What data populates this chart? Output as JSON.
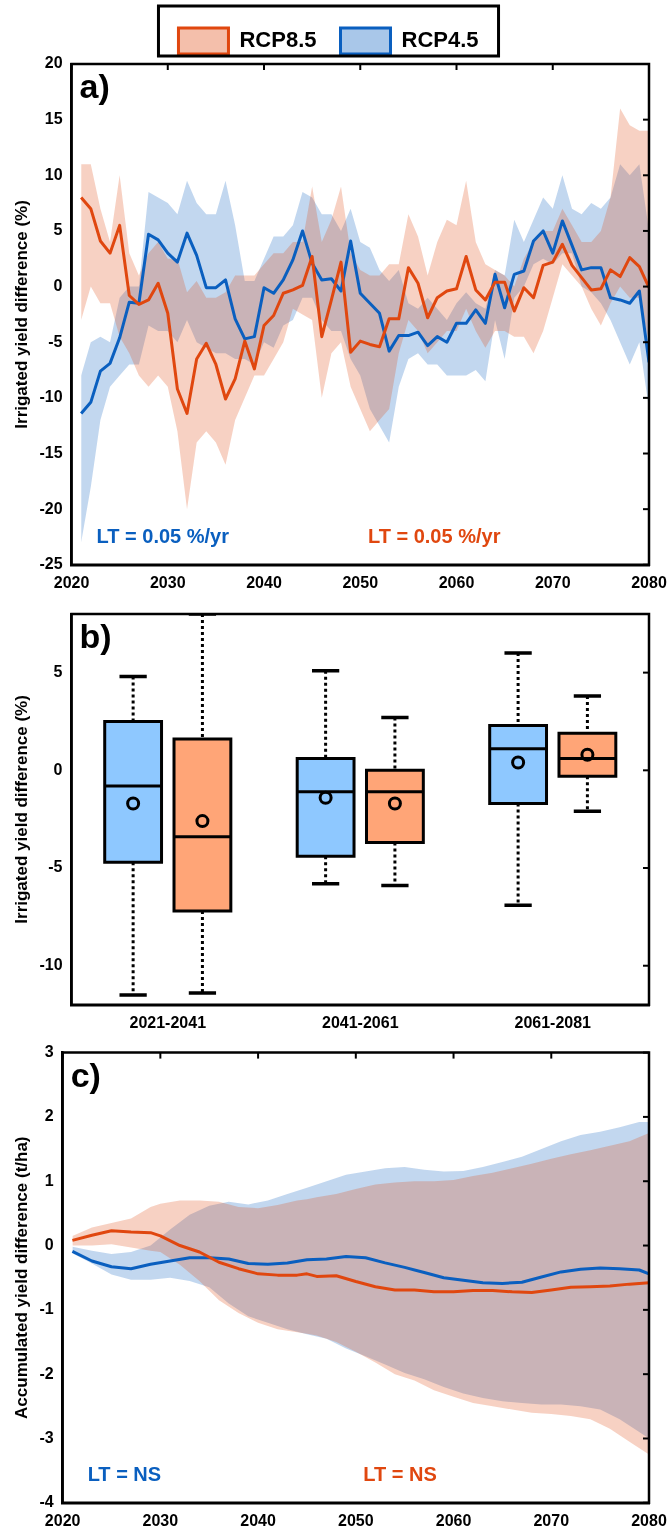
{
  "chart_data": [
    {
      "type": "line",
      "title": "a)",
      "ylabel": "Irrigated yield difference (%)",
      "legend": "top",
      "line_style": "solid",
      "marker": "none",
      "x": [
        2021,
        2022,
        2023,
        2024,
        2025,
        2026,
        2027,
        2028,
        2029,
        2030,
        2031,
        2032,
        2033,
        2034,
        2035,
        2036,
        2037,
        2038,
        2039,
        2040,
        2041,
        2042,
        2043,
        2044,
        2045,
        2046,
        2047,
        2048,
        2049,
        2050,
        2051,
        2052,
        2053,
        2054,
        2055,
        2056,
        2057,
        2058,
        2059,
        2060,
        2061,
        2062,
        2063,
        2064,
        2065,
        2066,
        2067,
        2068,
        2069,
        2070,
        2071,
        2072,
        2073,
        2074,
        2075,
        2076,
        2077,
        2078,
        2079,
        2080
      ],
      "xlim": [
        2020,
        2080
      ],
      "xticks": [
        2020,
        2030,
        2040,
        2050,
        2060,
        2070,
        2080
      ],
      "ylim": [
        -25,
        20
      ],
      "yticks": [
        -25,
        -20,
        -15,
        -10,
        -5,
        0,
        5,
        10,
        15,
        20
      ],
      "series": [
        {
          "name": "RCP8.5",
          "color": "#e0470f",
          "values": [
            8.0,
            7.0,
            4.1,
            3.0,
            5.5,
            -0.8,
            -1.6,
            -1.2,
            0.3,
            -2.4,
            -9.2,
            -11.4,
            -6.5,
            -5.1,
            -7.0,
            -10.1,
            -8.3,
            -4.9,
            -7.4,
            -3.5,
            -2.6,
            -0.6,
            -0.3,
            0.1,
            2.7,
            -4.5,
            -1.2,
            2.2,
            -5.9,
            -4.9,
            -5.2,
            -5.4,
            -2.9,
            -2.9,
            1.7,
            0.3,
            -2.8,
            -1.0,
            -0.4,
            -0.2,
            2.7,
            -0.3,
            -1.2,
            0.4,
            0.4,
            -2.2,
            -0.1,
            -1.0,
            1.9,
            2.2,
            3.8,
            1.9,
            0.8,
            -0.3,
            -0.2,
            1.5,
            0.9,
            2.6,
            1.8,
            -0.1
          ],
          "upper": [
            11,
            11,
            7,
            4,
            10,
            3,
            1,
            3,
            4,
            2.5,
            2.5,
            -0.5,
            0.5,
            -1,
            -1,
            -0.5,
            1,
            1,
            1,
            2,
            3,
            3,
            4,
            4,
            9,
            4,
            6,
            9,
            3,
            1.5,
            1,
            1,
            2,
            2,
            6.5,
            4.5,
            1,
            4,
            6,
            5.5,
            9.5,
            4,
            2,
            1.5,
            1,
            0,
            2.5,
            4,
            5,
            5,
            7,
            5.5,
            4,
            4,
            5,
            8,
            16,
            14.5,
            14,
            14
          ],
          "lower": [
            -3,
            0,
            -1.5,
            -1.5,
            -4.5,
            -6,
            -8,
            -9,
            -8,
            -9,
            -13,
            -20,
            -14,
            -13,
            -14,
            -16,
            -12,
            -10,
            -8,
            -8,
            -6.5,
            -5,
            -2,
            -2.5,
            -3,
            -10,
            -6,
            -5,
            -9,
            -11,
            -13,
            -12,
            -11,
            -6,
            -3,
            -4,
            -6,
            -5,
            -4,
            -4,
            -2,
            -4,
            -5.5,
            -4,
            -4,
            -4.5,
            -4.5,
            -6,
            -4,
            -1,
            2,
            1,
            0,
            -2,
            -3.5,
            -1.5,
            0,
            -1,
            -1,
            -5
          ]
        },
        {
          "name": "RCP4.5",
          "color": "#0a5fbf",
          "values": [
            -11.4,
            -10.4,
            -7.6,
            -6.9,
            -4.6,
            -1.4,
            -1.5,
            4.7,
            4.2,
            3.0,
            2.2,
            4.8,
            2.8,
            -0.1,
            -0.1,
            0.6,
            -2.9,
            -4.7,
            -4.5,
            -0.1,
            -0.6,
            0.6,
            2.4,
            5.0,
            2.1,
            0.6,
            0.7,
            -0.4,
            4.1,
            -0.6,
            -1.5,
            -2.4,
            -5.8,
            -4.4,
            -4.4,
            -4.1,
            -5.3,
            -4.5,
            -5.0,
            -3.3,
            -3.3,
            -2.1,
            -3.3,
            1.1,
            -1.9,
            1.1,
            1.4,
            4.1,
            5.0,
            3.0,
            5.9,
            3.7,
            1.5,
            1.7,
            1.7,
            -1.0,
            -1.2,
            -1.5,
            -0.4,
            -6.8
          ],
          "upper": [
            -8,
            -5,
            -4.5,
            -5,
            -1,
            0,
            0,
            8.5,
            8,
            7.5,
            6.5,
            9.5,
            7.5,
            6.5,
            6.5,
            9.5,
            5.5,
            0.5,
            0.5,
            2.5,
            4.5,
            4.5,
            5.5,
            8.5,
            8,
            6.5,
            6.5,
            5,
            7,
            4,
            3.5,
            1.5,
            0.5,
            1.5,
            -1.5,
            -2,
            -1,
            -2,
            -3,
            -1.5,
            -0.5,
            -1.5,
            -2,
            1.5,
            1,
            6,
            4,
            6,
            8,
            7,
            10,
            7,
            6.5,
            7.5,
            7,
            8,
            11,
            10,
            11,
            5
          ],
          "lower": [
            -23,
            -18,
            -12,
            -9,
            -8,
            -7,
            -7,
            -3.5,
            -4,
            -4,
            -5,
            -3,
            -5,
            -5.5,
            -6,
            -6,
            -6.5,
            -6.5,
            -7,
            -5,
            -5.5,
            -3.5,
            -3,
            -1,
            -1,
            -3,
            -4,
            -4,
            -6.5,
            -8,
            -11,
            -12.5,
            -14,
            -9,
            -6.5,
            -6,
            -7,
            -7,
            -8,
            -8,
            -8,
            -7.5,
            -8.5,
            -3,
            -6.5,
            -1,
            0,
            2,
            2.5,
            2,
            3,
            3,
            0,
            -0.5,
            -1.5,
            -3,
            -5,
            -7,
            -5,
            -11
          ]
        }
      ],
      "annotations": [
        "LT = 0.05 %/yr",
        "LT = 0.05 %/yr"
      ]
    },
    {
      "type": "box",
      "title": "b)",
      "ylabel": "Irrigated yield difference (%)",
      "categories": [
        "2021-2041",
        "2041-2061",
        "2061-2081"
      ],
      "ylim": [
        -12,
        8
      ],
      "yticks": [
        -10,
        -5,
        0,
        5
      ],
      "marker": "circle",
      "series": [
        {
          "color": "#8ec8ff",
          "boxes": [
            {
              "low": -11.5,
              "q1": -4.7,
              "median": -0.8,
              "q3": 2.5,
              "high": 4.8,
              "mean": -1.7
            },
            {
              "low": -5.8,
              "q1": -4.4,
              "median": -1.1,
              "q3": 0.6,
              "high": 5.1,
              "mean": -1.4
            },
            {
              "low": -6.9,
              "q1": -1.7,
              "median": 1.1,
              "q3": 2.3,
              "high": 6.0,
              "mean": 0.4
            }
          ]
        },
        {
          "color": "#ffa577",
          "boxes": [
            {
              "low": -11.4,
              "q1": -7.2,
              "median": -3.4,
              "q3": 1.6,
              "high": 8.0,
              "mean": -2.6
            },
            {
              "low": -5.9,
              "q1": -3.7,
              "median": -1.1,
              "q3": 0.0,
              "high": 2.7,
              "mean": -1.7
            },
            {
              "low": -2.1,
              "q1": -0.3,
              "median": 0.6,
              "q3": 1.9,
              "high": 3.8,
              "mean": 0.8
            }
          ]
        }
      ]
    },
    {
      "type": "line",
      "title": "c)",
      "ylabel": "Accumulated yield difference (t/ha)",
      "line_style": "solid",
      "marker": "none",
      "xlim": [
        2020,
        2080
      ],
      "xticks": [
        2020,
        2030,
        2040,
        2050,
        2060,
        2070,
        2080
      ],
      "ylim": [
        -4,
        3
      ],
      "yticks": [
        -4,
        -3,
        -2,
        -1,
        0,
        1,
        2,
        3
      ],
      "series": [
        {
          "color": "#e0470f",
          "x": [
            2021,
            2023,
            2025,
            2027,
            2029,
            2030,
            2032,
            2034,
            2036,
            2038,
            2040,
            2042,
            2044,
            2045,
            2046,
            2048,
            2050,
            2052,
            2054,
            2056,
            2058,
            2060,
            2062,
            2064,
            2066,
            2068,
            2070,
            2072,
            2074,
            2076,
            2078,
            2080
          ],
          "values": [
            0.08,
            0.16,
            0.23,
            0.21,
            0.2,
            0.15,
            0.0,
            -0.1,
            -0.26,
            -0.36,
            -0.44,
            -0.46,
            -0.46,
            -0.44,
            -0.48,
            -0.47,
            -0.56,
            -0.64,
            -0.69,
            -0.69,
            -0.72,
            -0.72,
            -0.7,
            -0.7,
            -0.72,
            -0.73,
            -0.69,
            -0.65,
            -0.64,
            -0.63,
            -0.6,
            -0.58
          ],
          "upper": [
            0.15,
            0.28,
            0.35,
            0.42,
            0.6,
            0.65,
            0.7,
            0.7,
            0.68,
            0.6,
            0.58,
            0.63,
            0.7,
            0.72,
            0.75,
            0.8,
            0.88,
            0.95,
            0.98,
            1.0,
            1.0,
            1.02,
            1.08,
            1.13,
            1.2,
            1.27,
            1.35,
            1.42,
            1.48,
            1.55,
            1.62,
            1.75
          ],
          "lower": [
            0.0,
            0.0,
            0.02,
            -0.03,
            -0.08,
            -0.1,
            -0.3,
            -0.55,
            -0.85,
            -1.05,
            -1.2,
            -1.3,
            -1.35,
            -1.37,
            -1.4,
            -1.5,
            -1.65,
            -1.82,
            -2.0,
            -2.1,
            -2.25,
            -2.35,
            -2.45,
            -2.5,
            -2.55,
            -2.6,
            -2.62,
            -2.65,
            -2.7,
            -2.85,
            -3.05,
            -3.25
          ]
        },
        {
          "color": "#0a5fbf",
          "x": [
            2021,
            2023,
            2025,
            2027,
            2029,
            2031,
            2033,
            2035,
            2037,
            2039,
            2041,
            2043,
            2045,
            2047,
            2049,
            2051,
            2053,
            2055,
            2057,
            2059,
            2061,
            2063,
            2065,
            2067,
            2069,
            2071,
            2073,
            2075,
            2077,
            2079,
            2080
          ],
          "values": [
            -0.09,
            -0.24,
            -0.33,
            -0.36,
            -0.29,
            -0.24,
            -0.19,
            -0.19,
            -0.21,
            -0.28,
            -0.29,
            -0.27,
            -0.22,
            -0.21,
            -0.17,
            -0.19,
            -0.27,
            -0.34,
            -0.42,
            -0.5,
            -0.54,
            -0.58,
            -0.59,
            -0.57,
            -0.49,
            -0.41,
            -0.37,
            -0.35,
            -0.36,
            -0.38,
            -0.44
          ],
          "upper": [
            -0.02,
            -0.08,
            -0.13,
            -0.1,
            0.0,
            0.25,
            0.48,
            0.62,
            0.68,
            0.64,
            0.7,
            0.8,
            0.9,
            1.0,
            1.1,
            1.15,
            1.2,
            1.22,
            1.18,
            1.15,
            1.16,
            1.22,
            1.3,
            1.38,
            1.5,
            1.62,
            1.72,
            1.77,
            1.84,
            1.92,
            1.92
          ],
          "lower": [
            -0.12,
            -0.28,
            -0.45,
            -0.53,
            -0.53,
            -0.5,
            -0.55,
            -0.65,
            -0.9,
            -1.1,
            -1.2,
            -1.3,
            -1.38,
            -1.45,
            -1.6,
            -1.72,
            -1.85,
            -1.98,
            -2.08,
            -2.2,
            -2.3,
            -2.37,
            -2.42,
            -2.45,
            -2.47,
            -2.47,
            -2.5,
            -2.55,
            -2.7,
            -2.9,
            -3.0
          ]
        }
      ],
      "annotations": [
        "LT = NS",
        "LT = NS"
      ]
    }
  ]
}
